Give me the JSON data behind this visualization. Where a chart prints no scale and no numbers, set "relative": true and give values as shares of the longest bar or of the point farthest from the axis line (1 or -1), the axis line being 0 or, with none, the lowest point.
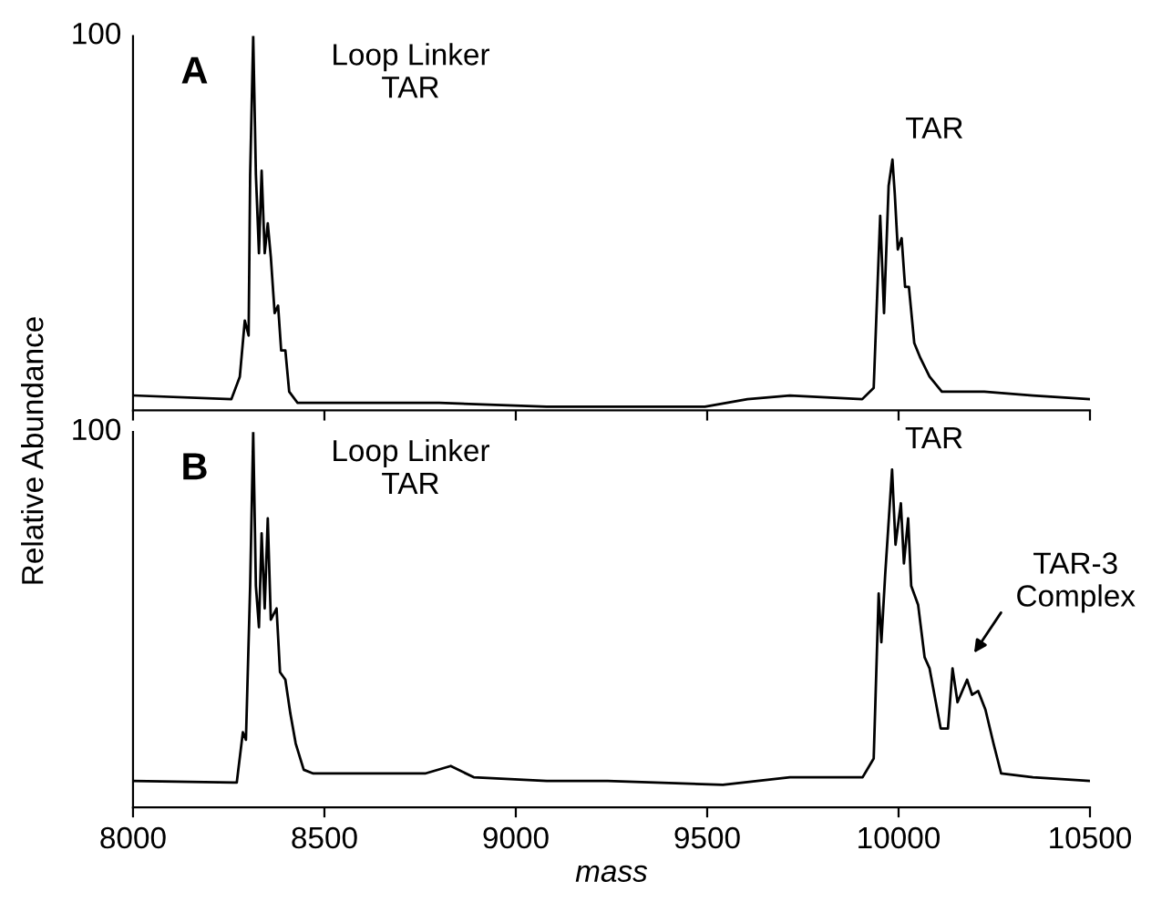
{
  "chart_data": [
    {
      "type": "line",
      "relative": true,
      "ylabel": "Relative Abundance",
      "xlim": [
        8000,
        10500
      ],
      "xticks": [
        8000,
        8500,
        9000,
        9500,
        10000,
        10500
      ],
      "tick_labels": false,
      "grid": false,
      "legend": false,
      "marker": "none",
      "line_style": "solid",
      "annotations": [
        "100",
        "A",
        "Loop Linker\nTAR",
        {
          "text": "TAR",
          "x": 9984,
          "y": 0.67
        }
      ],
      "series": [
        {
          "color": "#000000",
          "x": [
            8000,
            8257,
            8279,
            8292,
            8302,
            8306,
            8314,
            8321,
            8329,
            8336,
            8344,
            8352,
            8360,
            8370,
            8379,
            8387,
            8398,
            8408,
            8430,
            8600,
            8800,
            9081,
            9494,
            9605,
            9716,
            9905,
            9935,
            9946,
            9952,
            9962,
            9974,
            9984,
            9990,
            9998,
            10008,
            10017,
            10027,
            10041,
            10057,
            10081,
            10113,
            10224,
            10351,
            10500
          ],
          "values": [
            0.04,
            0.03,
            0.09,
            0.24,
            0.2,
            0.63,
            1.0,
            0.63,
            0.42,
            0.64,
            0.42,
            0.5,
            0.41,
            0.26,
            0.28,
            0.16,
            0.16,
            0.05,
            0.02,
            0.02,
            0.02,
            0.01,
            0.01,
            0.03,
            0.04,
            0.03,
            0.06,
            0.36,
            0.52,
            0.26,
            0.6,
            0.67,
            0.58,
            0.43,
            0.46,
            0.33,
            0.33,
            0.18,
            0.14,
            0.09,
            0.05,
            0.05,
            0.04,
            0.03
          ]
        }
      ]
    },
    {
      "type": "line",
      "relative": true,
      "xlabel": "mass",
      "xlim": [
        8000,
        10500
      ],
      "xticks": [
        8000,
        8500,
        9000,
        9500,
        10000,
        10500
      ],
      "tick_labels": "x",
      "grid": false,
      "legend": false,
      "marker": "none",
      "line_style": "solid",
      "annotations": [
        "100",
        "B",
        "Loop Linker\nTAR",
        {
          "text": "TAR",
          "x": 9983,
          "y": 0.9
        },
        "TAR-3\nComplex"
      ],
      "series": [
        {
          "color": "#000000",
          "x": [
            8000,
            8271,
            8287,
            8295,
            8306,
            8314,
            8321,
            8329,
            8336,
            8344,
            8352,
            8360,
            8375,
            8384,
            8398,
            8411,
            8425,
            8446,
            8471,
            8763,
            8830,
            8890,
            9081,
            9240,
            9541,
            9716,
            9906,
            9935,
            9948,
            9955,
            9965,
            9983,
            9992,
            10006,
            10014,
            10025,
            10033,
            10051,
            10068,
            10081,
            10110,
            10129,
            10141,
            10154,
            10179,
            10192,
            10208,
            10227,
            10248,
            10268,
            10351,
            10500
          ],
          "values": [
            0.07,
            0.066,
            0.2,
            0.18,
            0.59,
            1.0,
            0.59,
            0.48,
            0.73,
            0.53,
            0.77,
            0.5,
            0.53,
            0.36,
            0.34,
            0.25,
            0.17,
            0.1,
            0.09,
            0.09,
            0.11,
            0.08,
            0.07,
            0.07,
            0.06,
            0.08,
            0.08,
            0.13,
            0.57,
            0.44,
            0.62,
            0.9,
            0.7,
            0.81,
            0.65,
            0.77,
            0.59,
            0.54,
            0.4,
            0.37,
            0.21,
            0.21,
            0.37,
            0.28,
            0.34,
            0.3,
            0.31,
            0.26,
            0.17,
            0.09,
            0.08,
            0.07
          ]
        }
      ]
    }
  ]
}
